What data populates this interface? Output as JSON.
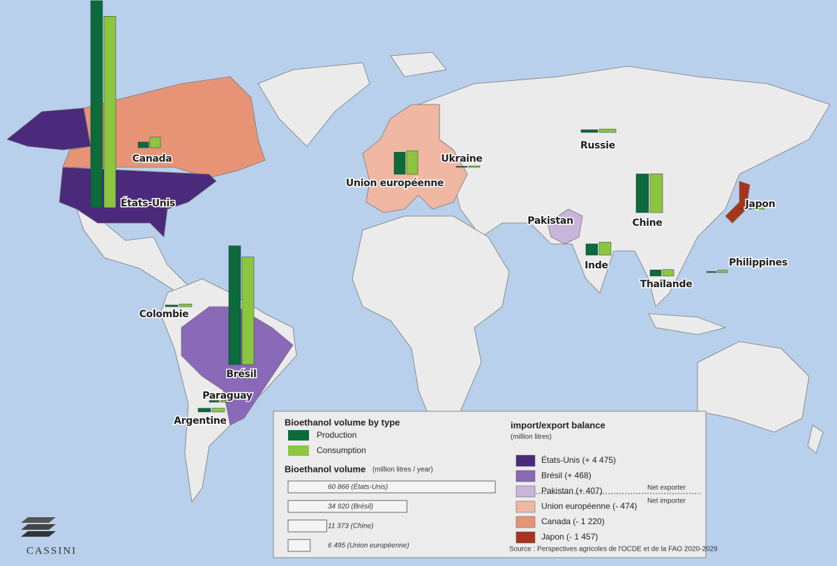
{
  "logo": "CASSINI",
  "legend": {
    "type_title": "Bioethanol volume by type",
    "types": [
      {
        "label": "Production",
        "color": "#0b6b3a"
      },
      {
        "label": "Consumption",
        "color": "#8cc63f"
      }
    ],
    "volume_title": "Bioethanol volume",
    "volume_unit": "(million litres / year)",
    "volume_scale": [
      {
        "value": 60866,
        "label": "60 866 (États-Unis)"
      },
      {
        "value": 34920,
        "label": "34 920 (Brésil)"
      },
      {
        "value": 11373,
        "label": "11 373 (Chine)"
      },
      {
        "value": 6495,
        "label": "6 495 (Union européenne)"
      }
    ],
    "balance_title": "import/export balance",
    "balance_unit": "(million litres)",
    "balance": [
      {
        "label": "États-Unis (+ 4 475)",
        "color": "#4b2a7b"
      },
      {
        "label": "Brésil (+ 468)",
        "color": "#8a69b8"
      },
      {
        "label": "Pakistan (+ 407)",
        "color": "#c9b5dc"
      },
      {
        "label": "Union européenne (- 474)",
        "color": "#f0b8a2"
      },
      {
        "label": "Canada (- 1 220)",
        "color": "#e79476"
      },
      {
        "label": "Japon (- 1 457)",
        "color": "#a7351e"
      }
    ],
    "net_exporter": "Net exporter",
    "net_importer": "Net importer",
    "source": "Source : Perspectives agricoles de l'OCDE et de la FAO 2020-2029"
  },
  "countries": [
    {
      "name": "États-Unis",
      "production": 60866,
      "consumption": 56300
    },
    {
      "name": "Canada",
      "production": 1700,
      "consumption": 3100
    },
    {
      "name": "Union européenne",
      "production": 6495,
      "consumption": 6900
    },
    {
      "name": "Ukraine",
      "production": 300,
      "consumption": 400
    },
    {
      "name": "Russie",
      "production": 800,
      "consumption": 1000
    },
    {
      "name": "Chine",
      "production": 11373,
      "consumption": 11400
    },
    {
      "name": "Japon",
      "production": 100,
      "consumption": 1600
    },
    {
      "name": "Pakistan"
    },
    {
      "name": "Inde",
      "production": 3300,
      "consumption": 3800
    },
    {
      "name": "Thaïlande",
      "production": 1800,
      "consumption": 1900
    },
    {
      "name": "Philippines",
      "production": 300,
      "consumption": 700
    },
    {
      "name": "Colombie",
      "production": 500,
      "consumption": 800
    },
    {
      "name": "Brésil",
      "production": 34920,
      "consumption": 31600
    },
    {
      "name": "Paraguay",
      "production": 500,
      "consumption": 500
    },
    {
      "name": "Argentine",
      "production": 1100,
      "consumption": 1100
    }
  ]
}
